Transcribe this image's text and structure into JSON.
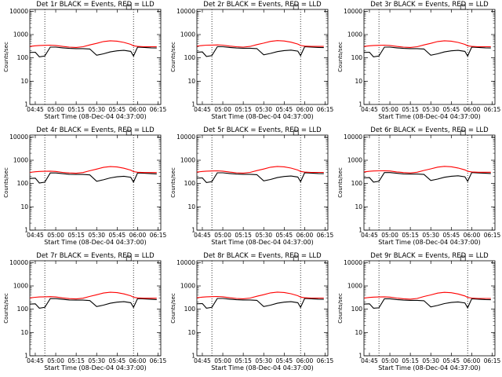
{
  "chart_data": [
    {
      "type": "line",
      "title": "Det 1r BLACK = Events, RED = LLD",
      "xlabel": "Start Time (08-Dec-04 04:37:00)",
      "ylabel": "Counts/sec",
      "x": [
        "04:41",
        "04:45",
        "04:48",
        "04:52",
        "04:56",
        "05:00",
        "05:05",
        "05:10",
        "05:15",
        "05:20",
        "05:25",
        "05:30",
        "05:35",
        "05:40",
        "05:45",
        "05:50",
        "05:55",
        "05:57",
        "06:00",
        "06:05",
        "06:10",
        "06:14"
      ],
      "series": [
        {
          "name": "Events",
          "color": "#000000",
          "values": [
            170,
            175,
            110,
            120,
            290,
            290,
            270,
            255,
            250,
            250,
            240,
            130,
            150,
            180,
            200,
            210,
            190,
            120,
            290,
            280,
            270,
            265
          ]
        },
        {
          "name": "LLD",
          "color": "#ff0000",
          "values": [
            310,
            330,
            340,
            345,
            350,
            340,
            310,
            290,
            280,
            300,
            360,
            420,
            500,
            540,
            520,
            460,
            380,
            330,
            310,
            300,
            300,
            300
          ]
        }
      ]
    },
    {
      "type": "line",
      "title": "Det 2r BLACK = Events, RED = LLD",
      "xlabel": "Start Time (08-Dec-04 04:37:00)",
      "ylabel": "Counts/sec",
      "x": [
        "04:41",
        "04:45",
        "04:48",
        "04:52",
        "04:56",
        "05:00",
        "05:05",
        "05:10",
        "05:15",
        "05:20",
        "05:25",
        "05:30",
        "05:35",
        "05:40",
        "05:45",
        "05:50",
        "05:55",
        "05:57",
        "06:00",
        "06:05",
        "06:10",
        "06:14"
      ],
      "series": [
        {
          "name": "Events",
          "color": "#000000",
          "values": [
            175,
            180,
            115,
            125,
            300,
            300,
            280,
            265,
            260,
            260,
            250,
            135,
            155,
            185,
            205,
            215,
            195,
            125,
            300,
            290,
            280,
            275
          ]
        },
        {
          "name": "LLD",
          "color": "#ff0000",
          "values": [
            320,
            340,
            350,
            355,
            360,
            350,
            320,
            300,
            290,
            310,
            370,
            430,
            510,
            550,
            530,
            470,
            390,
            340,
            320,
            310,
            310,
            310
          ]
        }
      ]
    },
    {
      "type": "line",
      "title": "Det 3r BLACK = Events, RED = LLD",
      "xlabel": "Start Time (08-Dec-04 04:37:00)",
      "ylabel": "Counts/sec",
      "x": [
        "04:41",
        "04:45",
        "04:48",
        "04:52",
        "04:56",
        "05:00",
        "05:05",
        "05:10",
        "05:15",
        "05:20",
        "05:25",
        "05:30",
        "05:35",
        "05:40",
        "05:45",
        "05:50",
        "05:55",
        "05:57",
        "06:00",
        "06:05",
        "06:10",
        "06:14"
      ],
      "series": [
        {
          "name": "Events",
          "color": "#000000",
          "values": [
            170,
            175,
            110,
            120,
            290,
            290,
            270,
            255,
            250,
            250,
            240,
            130,
            150,
            180,
            200,
            210,
            190,
            120,
            290,
            280,
            270,
            265
          ]
        },
        {
          "name": "LLD",
          "color": "#ff0000",
          "values": [
            310,
            330,
            340,
            345,
            350,
            340,
            310,
            290,
            280,
            300,
            360,
            420,
            500,
            540,
            520,
            460,
            380,
            330,
            310,
            300,
            300,
            300
          ]
        }
      ]
    },
    {
      "type": "line",
      "title": "Det 4r BLACK = Events, RED = LLD",
      "xlabel": "Start Time (08-Dec-04 04:37:00)",
      "ylabel": "Counts/sec",
      "x": [
        "04:41",
        "04:45",
        "04:48",
        "04:52",
        "04:56",
        "05:00",
        "05:05",
        "05:10",
        "05:15",
        "05:20",
        "05:25",
        "05:30",
        "05:35",
        "05:40",
        "05:45",
        "05:50",
        "05:55",
        "05:57",
        "06:00",
        "06:05",
        "06:10",
        "06:14"
      ],
      "series": [
        {
          "name": "Events",
          "color": "#000000",
          "values": [
            165,
            170,
            105,
            115,
            285,
            285,
            265,
            250,
            245,
            245,
            235,
            125,
            145,
            175,
            195,
            205,
            185,
            115,
            285,
            275,
            265,
            260
          ]
        },
        {
          "name": "LLD",
          "color": "#ff0000",
          "values": [
            300,
            320,
            330,
            335,
            340,
            330,
            300,
            285,
            275,
            295,
            355,
            415,
            495,
            535,
            515,
            455,
            375,
            325,
            305,
            295,
            295,
            295
          ]
        }
      ]
    },
    {
      "type": "line",
      "title": "Det 5r BLACK = Events, RED = LLD",
      "xlabel": "Start Time (08-Dec-04 04:37:00)",
      "ylabel": "Counts/sec",
      "x": [
        "04:41",
        "04:45",
        "04:48",
        "04:52",
        "04:56",
        "05:00",
        "05:05",
        "05:10",
        "05:15",
        "05:20",
        "05:25",
        "05:30",
        "05:35",
        "05:40",
        "05:45",
        "05:50",
        "05:55",
        "05:57",
        "06:00",
        "06:05",
        "06:10",
        "06:14"
      ],
      "series": [
        {
          "name": "Events",
          "color": "#000000",
          "values": [
            170,
            175,
            110,
            120,
            290,
            290,
            270,
            255,
            250,
            250,
            240,
            130,
            150,
            180,
            200,
            210,
            190,
            120,
            290,
            280,
            270,
            265
          ]
        },
        {
          "name": "LLD",
          "color": "#ff0000",
          "values": [
            310,
            330,
            340,
            345,
            350,
            340,
            310,
            290,
            280,
            300,
            360,
            420,
            500,
            540,
            520,
            460,
            380,
            330,
            310,
            300,
            300,
            300
          ]
        }
      ]
    },
    {
      "type": "line",
      "title": "Det 6r BLACK = Events, RED = LLD",
      "xlabel": "Start Time (08-Dec-04 04:37:00)",
      "ylabel": "Counts/sec",
      "x": [
        "04:41",
        "04:45",
        "04:48",
        "04:52",
        "04:56",
        "05:00",
        "05:05",
        "05:10",
        "05:15",
        "05:20",
        "05:25",
        "05:30",
        "05:35",
        "05:40",
        "05:45",
        "05:50",
        "05:55",
        "05:57",
        "06:00",
        "06:05",
        "06:10",
        "06:14"
      ],
      "series": [
        {
          "name": "Events",
          "color": "#000000",
          "values": [
            175,
            180,
            115,
            125,
            295,
            295,
            275,
            260,
            255,
            255,
            245,
            135,
            155,
            185,
            205,
            215,
            195,
            125,
            295,
            285,
            275,
            270
          ]
        },
        {
          "name": "LLD",
          "color": "#ff0000",
          "values": [
            315,
            335,
            345,
            350,
            355,
            345,
            315,
            295,
            285,
            305,
            365,
            425,
            505,
            545,
            525,
            465,
            385,
            335,
            315,
            305,
            305,
            305
          ]
        }
      ]
    },
    {
      "type": "line",
      "title": "Det 7r BLACK = Events, RED = LLD",
      "xlabel": "Start Time (08-Dec-04 04:37:00)",
      "ylabel": "Counts/sec",
      "x": [
        "04:41",
        "04:45",
        "04:48",
        "04:52",
        "04:56",
        "05:00",
        "05:05",
        "05:10",
        "05:15",
        "05:20",
        "05:25",
        "05:30",
        "05:35",
        "05:40",
        "05:45",
        "05:50",
        "05:55",
        "05:57",
        "06:00",
        "06:05",
        "06:10",
        "06:14"
      ],
      "series": [
        {
          "name": "Events",
          "color": "#000000",
          "values": [
            165,
            170,
            110,
            120,
            285,
            285,
            265,
            250,
            245,
            245,
            235,
            130,
            150,
            180,
            200,
            210,
            190,
            120,
            285,
            275,
            265,
            260
          ]
        },
        {
          "name": "LLD",
          "color": "#ff0000",
          "values": [
            305,
            325,
            335,
            340,
            345,
            335,
            305,
            285,
            275,
            295,
            355,
            415,
            495,
            535,
            515,
            455,
            375,
            325,
            305,
            295,
            295,
            295
          ]
        }
      ]
    },
    {
      "type": "line",
      "title": "Det 8r BLACK = Events, RED = LLD",
      "xlabel": "Start Time (08-Dec-04 04:37:00)",
      "ylabel": "Counts/sec",
      "x": [
        "04:41",
        "04:45",
        "04:48",
        "04:52",
        "04:56",
        "05:00",
        "05:05",
        "05:10",
        "05:15",
        "05:20",
        "05:25",
        "05:30",
        "05:35",
        "05:40",
        "05:45",
        "05:50",
        "05:55",
        "05:57",
        "06:00",
        "06:05",
        "06:10",
        "06:14"
      ],
      "series": [
        {
          "name": "Events",
          "color": "#000000",
          "values": [
            170,
            175,
            110,
            120,
            290,
            290,
            270,
            255,
            250,
            250,
            240,
            130,
            150,
            180,
            200,
            210,
            190,
            120,
            290,
            280,
            270,
            265
          ]
        },
        {
          "name": "LLD",
          "color": "#ff0000",
          "values": [
            310,
            330,
            340,
            345,
            350,
            340,
            310,
            290,
            280,
            300,
            360,
            420,
            500,
            540,
            520,
            460,
            380,
            330,
            310,
            300,
            300,
            300
          ]
        }
      ]
    },
    {
      "type": "line",
      "title": "Det 9r BLACK = Events, RED = LLD",
      "xlabel": "Start Time (08-Dec-04 04:37:00)",
      "ylabel": "Counts/sec",
      "x": [
        "04:41",
        "04:45",
        "04:48",
        "04:52",
        "04:56",
        "05:00",
        "05:05",
        "05:10",
        "05:15",
        "05:20",
        "05:25",
        "05:30",
        "05:35",
        "05:40",
        "05:45",
        "05:50",
        "05:55",
        "05:57",
        "06:00",
        "06:05",
        "06:10",
        "06:14"
      ],
      "series": [
        {
          "name": "Events",
          "color": "#000000",
          "values": [
            165,
            170,
            110,
            115,
            280,
            280,
            260,
            245,
            240,
            240,
            230,
            125,
            145,
            175,
            195,
            205,
            185,
            115,
            280,
            270,
            260,
            255
          ]
        },
        {
          "name": "LLD",
          "color": "#ff0000",
          "values": [
            300,
            320,
            330,
            335,
            340,
            330,
            300,
            280,
            270,
            290,
            350,
            410,
            490,
            530,
            510,
            450,
            370,
            320,
            300,
            290,
            290,
            290
          ]
        }
      ]
    }
  ],
  "axes": {
    "xticks": [
      "04:45",
      "05:00",
      "05:15",
      "05:30",
      "05:45",
      "06:00",
      "06:15"
    ],
    "xrange": [
      "04:41",
      "06:17"
    ],
    "ylog": true,
    "yrange": [
      1,
      12000
    ],
    "yticks": [
      "1",
      "10",
      "100",
      "1000",
      "10000"
    ],
    "saa_markers": [
      "04:52",
      "05:57"
    ],
    "grid": false
  }
}
